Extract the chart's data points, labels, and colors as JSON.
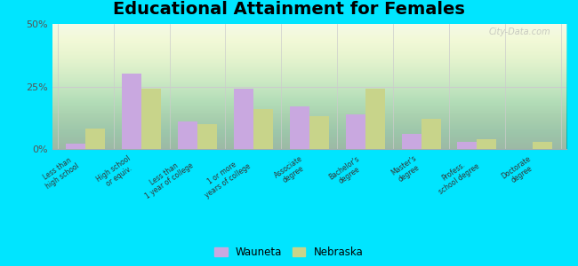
{
  "title": "Educational Attainment for Females",
  "categories": [
    "Less than\nhigh school",
    "High school\nor equiv.",
    "Less than\n1 year of college",
    "1 or more\nyears of college",
    "Associate\ndegree",
    "Bachelor's\ndegree",
    "Master's\ndegree",
    "Profess.\nschool degree",
    "Doctorate\ndegree"
  ],
  "wauneta": [
    2.0,
    30.0,
    11.0,
    24.0,
    17.0,
    14.0,
    6.0,
    3.0,
    0.0
  ],
  "nebraska": [
    8.0,
    24.0,
    10.0,
    16.0,
    13.0,
    24.0,
    12.0,
    4.0,
    3.0
  ],
  "wauneta_color": "#c9a8e0",
  "nebraska_color": "#c8d48a",
  "bg_top_color": "#f0f8e8",
  "bg_bottom_color": "#d8eecc",
  "outer_background": "#00e5ff",
  "title_fontsize": 14,
  "ylim": [
    0,
    50
  ],
  "yticks": [
    0,
    25,
    50
  ],
  "ytick_labels": [
    "0%",
    "25%",
    "50%"
  ],
  "legend_labels": [
    "Wauneta",
    "Nebraska"
  ],
  "watermark": "City-Data.com",
  "bar_width": 0.35
}
